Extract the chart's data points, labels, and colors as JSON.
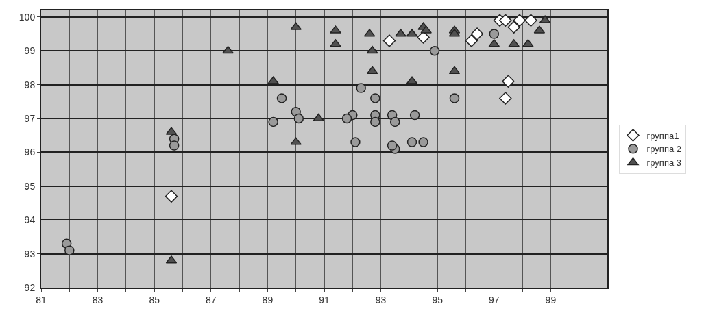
{
  "chart_data": {
    "type": "scatter",
    "xlim": [
      81,
      101
    ],
    "ylim": [
      92,
      100.2
    ],
    "xticks": [
      81,
      {
        "value": 82,
        "label": null
      },
      83,
      {
        "value": 84,
        "label": null
      },
      85,
      {
        "value": 86,
        "label": null
      },
      87,
      {
        "value": 88,
        "label": null
      },
      89,
      {
        "value": 90,
        "label": null
      },
      91,
      {
        "value": 92,
        "label": null
      },
      93,
      {
        "value": 94,
        "label": null
      },
      95,
      {
        "value": 96,
        "label": null
      },
      97,
      {
        "value": 98,
        "label": null
      },
      99,
      {
        "value": 100,
        "label": null
      }
    ],
    "yticks": [
      92,
      93,
      94,
      95,
      96,
      97,
      98,
      99,
      100
    ],
    "grid": true,
    "legend": "right",
    "series": [
      {
        "name": "группа1",
        "color": "#ffffff",
        "marker": "diamond",
        "x": [
          85.6,
          93.3,
          94.5,
          96.4,
          96.2,
          97.2,
          97.4,
          97.9,
          97.7,
          98.3,
          97.5,
          97.4
        ],
        "values": [
          94.7,
          99.3,
          99.4,
          99.5,
          99.3,
          99.9,
          99.9,
          99.9,
          99.7,
          99.9,
          98.1,
          97.6
        ]
      },
      {
        "name": "группа 2",
        "color": "#9a9a9a",
        "marker": "circle",
        "x": [
          81.9,
          82.0,
          85.7,
          85.7,
          89.2,
          89.5,
          90.0,
          90.1,
          92.3,
          92.8,
          92.0,
          91.8,
          92.8,
          92.8,
          93.4,
          93.5,
          94.2,
          95.6,
          97.0,
          94.9,
          92.1,
          93.5,
          93.4,
          94.1,
          94.5
        ],
        "values": [
          93.3,
          93.1,
          96.4,
          96.2,
          96.9,
          97.6,
          97.2,
          97.0,
          97.9,
          97.6,
          97.1,
          97.0,
          97.1,
          96.9,
          97.1,
          96.9,
          97.1,
          97.6,
          99.5,
          99.0,
          96.3,
          96.1,
          96.2,
          96.3,
          96.3
        ]
      },
      {
        "name": "группа 3",
        "color": "#505050",
        "marker": "triangle",
        "x": [
          90.0,
          87.6,
          89.2,
          90.8,
          90.0,
          85.6,
          85.6,
          91.4,
          91.4,
          92.6,
          92.7,
          92.7,
          93.7,
          94.1,
          94.5,
          94.6,
          94.1,
          95.6,
          95.6,
          95.6,
          97.0,
          97.7,
          98.2,
          98.6,
          98.8
        ],
        "values": [
          99.7,
          99.0,
          98.1,
          97.0,
          96.3,
          96.6,
          92.8,
          99.6,
          99.2,
          99.5,
          99.0,
          98.4,
          99.5,
          99.5,
          99.7,
          99.6,
          98.1,
          99.6,
          99.5,
          98.4,
          99.2,
          99.2,
          99.2,
          99.6,
          99.9
        ]
      }
    ]
  }
}
